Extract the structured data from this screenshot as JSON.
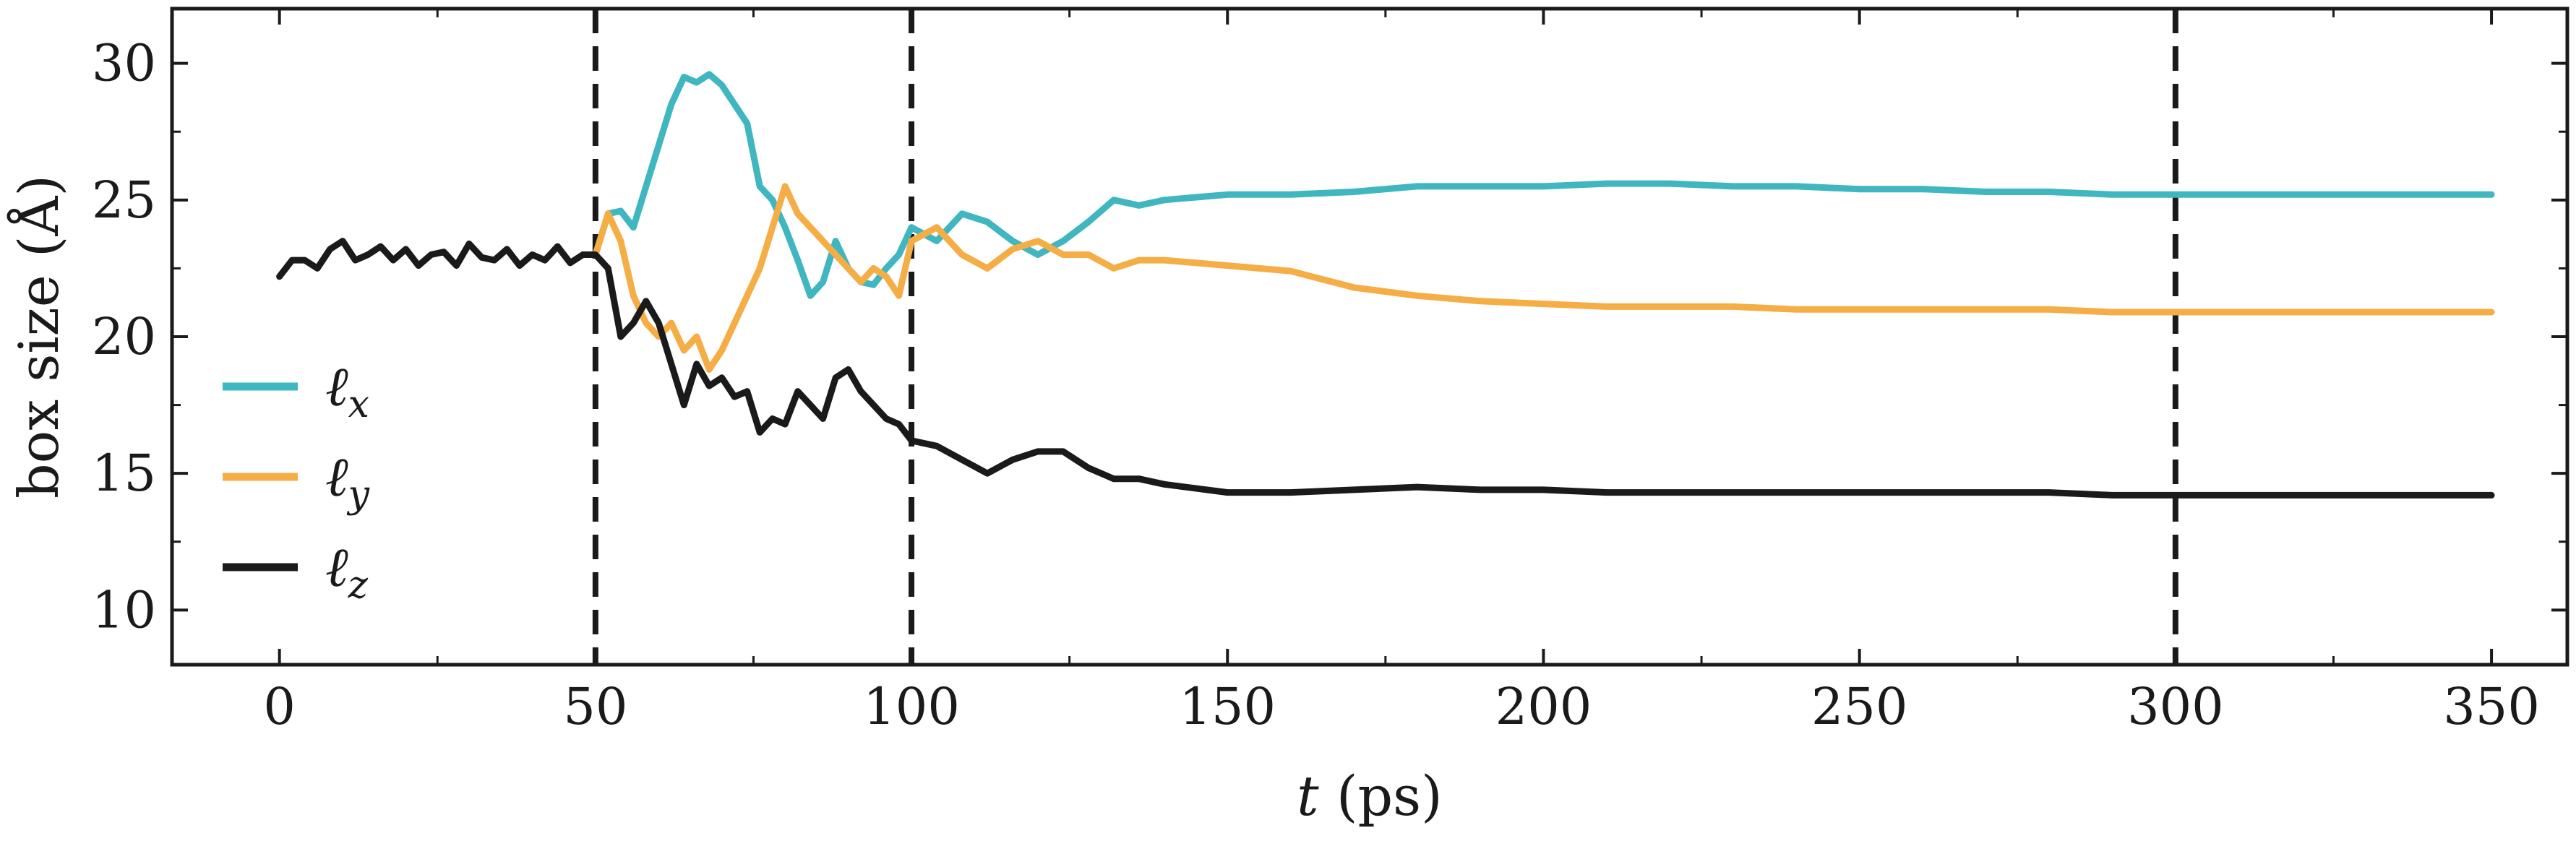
{
  "chart_data": {
    "type": "line",
    "xlabel_var": "t",
    "xlabel_unit": "(ps)",
    "ylabel": "box size (Å)",
    "xlim": [
      -17,
      362
    ],
    "ylim": [
      8,
      32
    ],
    "xticks": [
      0,
      50,
      100,
      150,
      200,
      250,
      300,
      350
    ],
    "yticks": [
      10,
      15,
      20,
      25,
      30
    ],
    "vlines": [
      50,
      100,
      300
    ],
    "grid": false,
    "legend_position": "left",
    "series": [
      {
        "name": "ℓx",
        "base": "ℓ",
        "sub": "x",
        "color": "#3fb6c0",
        "x": [
          50,
          52,
          54,
          56,
          58,
          60,
          62,
          64,
          66,
          68,
          70,
          72,
          74,
          76,
          78,
          80,
          82,
          84,
          86,
          88,
          90,
          92,
          94,
          96,
          98,
          100,
          104,
          108,
          112,
          116,
          120,
          124,
          128,
          132,
          136,
          140,
          150,
          160,
          170,
          180,
          190,
          200,
          210,
          220,
          230,
          240,
          250,
          260,
          270,
          280,
          290,
          300,
          310,
          320,
          330,
          340,
          350
        ],
        "y": [
          23.0,
          24.5,
          24.6,
          24.0,
          25.5,
          27.0,
          28.5,
          29.5,
          29.3,
          29.6,
          29.2,
          28.5,
          27.8,
          25.5,
          25.0,
          24.0,
          22.8,
          21.5,
          22.0,
          23.5,
          22.5,
          22.0,
          21.9,
          22.5,
          23.0,
          24.0,
          23.5,
          24.5,
          24.2,
          23.5,
          23.0,
          23.5,
          24.2,
          25.0,
          24.8,
          25.0,
          25.2,
          25.2,
          25.3,
          25.5,
          25.5,
          25.5,
          25.6,
          25.6,
          25.5,
          25.5,
          25.4,
          25.4,
          25.3,
          25.3,
          25.2,
          25.2,
          25.2,
          25.2,
          25.2,
          25.2,
          25.2
        ]
      },
      {
        "name": "ℓy",
        "base": "ℓ",
        "sub": "y",
        "color": "#f5ad46",
        "x": [
          50,
          52,
          54,
          56,
          58,
          60,
          62,
          64,
          66,
          68,
          70,
          72,
          74,
          76,
          78,
          80,
          82,
          84,
          86,
          88,
          90,
          92,
          94,
          96,
          98,
          100,
          104,
          108,
          112,
          116,
          120,
          124,
          128,
          132,
          136,
          140,
          150,
          160,
          170,
          180,
          190,
          200,
          210,
          220,
          230,
          240,
          250,
          260,
          270,
          280,
          290,
          300,
          310,
          320,
          330,
          340,
          350
        ],
        "y": [
          23.0,
          24.5,
          23.5,
          21.5,
          20.5,
          20.0,
          20.5,
          19.5,
          20.0,
          18.8,
          19.5,
          20.5,
          21.5,
          22.5,
          24.0,
          25.5,
          24.5,
          24.0,
          23.5,
          23.0,
          22.5,
          22.0,
          22.5,
          22.2,
          21.5,
          23.5,
          24.0,
          23.0,
          22.5,
          23.2,
          23.5,
          23.0,
          23.0,
          22.5,
          22.8,
          22.8,
          22.6,
          22.4,
          21.8,
          21.5,
          21.3,
          21.2,
          21.1,
          21.1,
          21.1,
          21.0,
          21.0,
          21.0,
          21.0,
          21.0,
          20.9,
          20.9,
          20.9,
          20.9,
          20.9,
          20.9,
          20.9
        ]
      },
      {
        "name": "ℓz",
        "base": "ℓ",
        "sub": "z",
        "color": "#1a1a1a",
        "x": [
          0,
          2,
          4,
          6,
          8,
          10,
          12,
          14,
          16,
          18,
          20,
          22,
          24,
          26,
          28,
          30,
          32,
          34,
          36,
          38,
          40,
          42,
          44,
          46,
          48,
          50,
          52,
          54,
          56,
          58,
          60,
          62,
          64,
          66,
          68,
          70,
          72,
          74,
          76,
          78,
          80,
          82,
          84,
          86,
          88,
          90,
          92,
          94,
          96,
          98,
          100,
          104,
          108,
          112,
          116,
          120,
          124,
          128,
          132,
          136,
          140,
          150,
          160,
          170,
          180,
          190,
          200,
          210,
          220,
          230,
          240,
          250,
          260,
          270,
          280,
          290,
          300,
          310,
          320,
          330,
          340,
          350
        ],
        "y": [
          22.2,
          22.8,
          22.8,
          22.5,
          23.2,
          23.5,
          22.8,
          23.0,
          23.3,
          22.8,
          23.2,
          22.6,
          23.0,
          23.1,
          22.6,
          23.4,
          22.9,
          22.8,
          23.2,
          22.6,
          23.0,
          22.8,
          23.3,
          22.7,
          23.0,
          23.0,
          22.5,
          20.0,
          20.5,
          21.3,
          20.5,
          19.0,
          17.5,
          19.0,
          18.2,
          18.5,
          17.8,
          18.0,
          16.5,
          17.0,
          16.8,
          18.0,
          17.5,
          17.0,
          18.5,
          18.8,
          18.0,
          17.5,
          17.0,
          16.8,
          16.2,
          16.0,
          15.5,
          15.0,
          15.5,
          15.8,
          15.8,
          15.2,
          14.8,
          14.8,
          14.6,
          14.3,
          14.3,
          14.4,
          14.5,
          14.4,
          14.4,
          14.3,
          14.3,
          14.3,
          14.3,
          14.3,
          14.3,
          14.3,
          14.3,
          14.2,
          14.2,
          14.2,
          14.2,
          14.2,
          14.2,
          14.2
        ]
      }
    ]
  }
}
